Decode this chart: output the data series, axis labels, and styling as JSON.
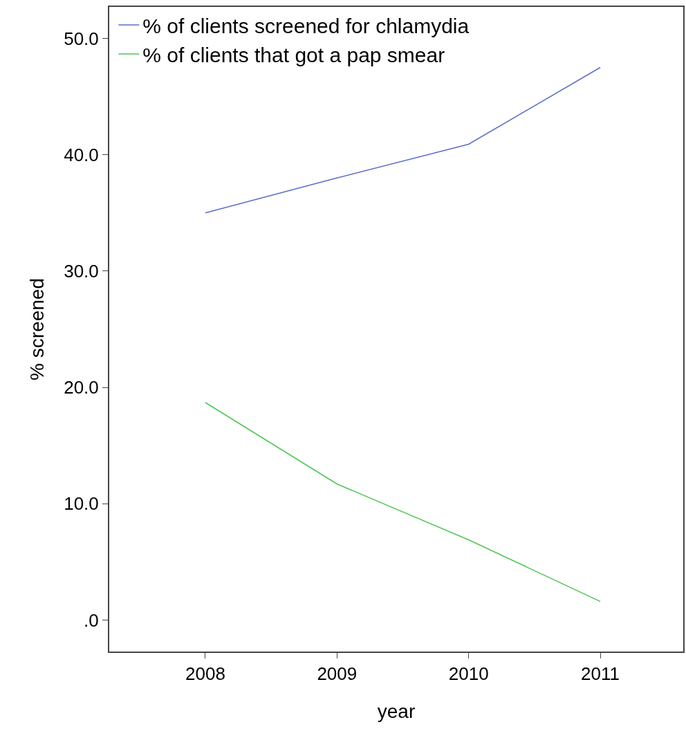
{
  "chart_data": {
    "type": "line",
    "xlabel": "year",
    "ylabel": "% screened",
    "categories": [
      "2008",
      "2009",
      "2010",
      "2011"
    ],
    "series": [
      {
        "name": "% of clients screened for chlamydia",
        "color": "#5b6ec8",
        "values": [
          35.0,
          38.0,
          40.9,
          47.5
        ]
      },
      {
        "name": "% of clients that got a pap smear",
        "color": "#4dc552",
        "values": [
          18.7,
          11.7,
          6.9,
          1.6
        ]
      }
    ],
    "ylim": [
      -2.7,
      52.7
    ],
    "yticks": [
      {
        "value": 0,
        "label": ".0"
      },
      {
        "value": 10,
        "label": "10.0"
      },
      {
        "value": 20,
        "label": "20.0"
      },
      {
        "value": 30,
        "label": "30.0"
      },
      {
        "value": 40,
        "label": "40.0"
      },
      {
        "value": 50,
        "label": "50.0"
      }
    ],
    "legend": "top left",
    "marker": "none",
    "line_style": "solid"
  }
}
